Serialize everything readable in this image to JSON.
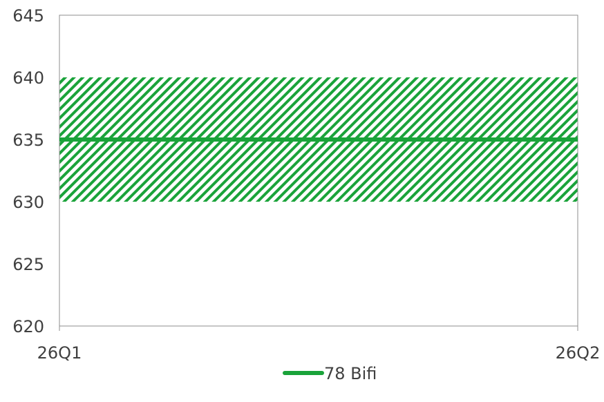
{
  "chart_data": {
    "type": "line",
    "title": "",
    "xlabel": "",
    "ylabel": "",
    "categories": [
      "26Q1",
      "26Q2"
    ],
    "ylim": [
      620,
      645
    ],
    "yticks": [
      620,
      625,
      630,
      635,
      640,
      645
    ],
    "grid": false,
    "legend_position": "bottom",
    "series": [
      {
        "name": "78 Bifi",
        "values": [
          635,
          635
        ],
        "color": "#1aa33a",
        "band": {
          "low": [
            630,
            630
          ],
          "high": [
            640,
            640
          ],
          "fill": "hatched",
          "color": "#1aa33a"
        }
      }
    ]
  }
}
